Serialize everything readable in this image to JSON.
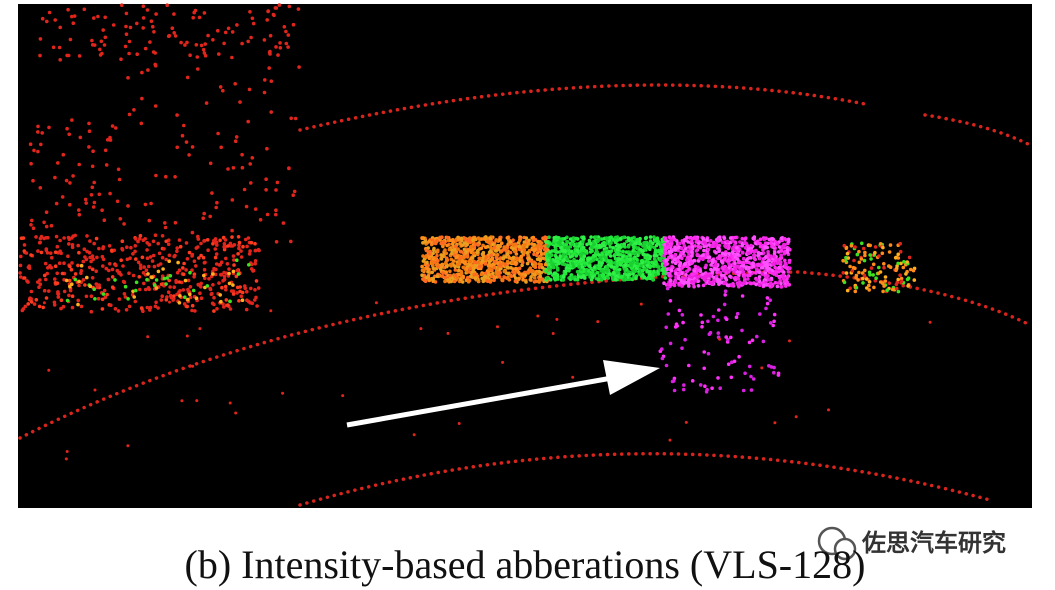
{
  "figure": {
    "caption": "(b) Intensity-based abberations (VLS-128)",
    "watermark": "佐思汽车研究"
  }
}
